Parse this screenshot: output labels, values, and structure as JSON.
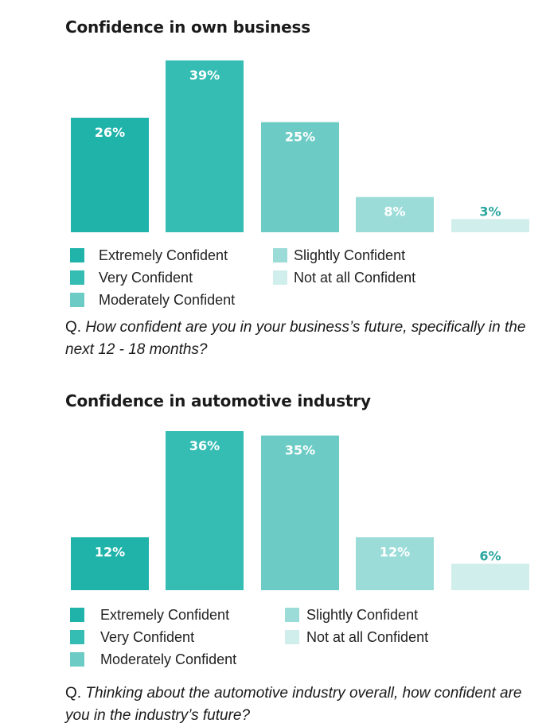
{
  "colors": {
    "extremely": "#1fb3aa",
    "very": "#35bdb4",
    "moderately": "#6ccbc5",
    "slightly": "#9cdcd8",
    "not_at_all": "#d0eeec",
    "label_dark": "#ffffff",
    "label_light": "#2aa79f"
  },
  "panels": [
    {
      "title": "Confidence in own business",
      "legend": [
        {
          "label": "Extremely Confident",
          "color": "#1fb3aa"
        },
        {
          "label": "Very Confident",
          "color": "#35bdb4"
        },
        {
          "label": "Moderately Confident",
          "color": "#6ccbc5"
        },
        {
          "label": "Slightly Confident",
          "color": "#9cdcd8"
        },
        {
          "label": "Not at all Confident",
          "color": "#d0eeec"
        }
      ],
      "question_prefix": "Q.",
      "question_text": "How confident are you in your business’s future, specifically in the next 12 - 18 months?"
    },
    {
      "title": "Confidence in automotive industry",
      "legend": [
        {
          "label": "Extremely Confident",
          "color": "#1fb3aa"
        },
        {
          "label": "Very Confident",
          "color": "#35bdb4"
        },
        {
          "label": "Moderately Confident",
          "color": "#6ccbc5"
        },
        {
          "label": "Slightly Confident",
          "color": "#9cdcd8"
        },
        {
          "label": "Not at all Confident",
          "color": "#d0eeec"
        }
      ],
      "question_prefix": "Q.",
      "question_text": "Thinking about the automotive industry overall, how confident are you in the industry’s future?"
    }
  ],
  "chart_data": [
    {
      "type": "bar",
      "title": "Confidence in own business",
      "categories": [
        "Extremely Confident",
        "Very Confident",
        "Moderately Confident",
        "Slightly Confident",
        "Not at all Confident"
      ],
      "values": [
        26,
        39,
        25,
        8,
        3
      ],
      "data_labels": [
        "26%",
        "39%",
        "25%",
        "8%",
        "3%"
      ],
      "colors": [
        "#1fb3aa",
        "#35bdb4",
        "#6ccbc5",
        "#9cdcd8",
        "#d0eeec"
      ],
      "ylim": [
        0,
        39
      ],
      "grid": false,
      "legend": "bottom"
    },
    {
      "type": "bar",
      "title": "Confidence in automotive industry",
      "categories": [
        "Extremely Confident",
        "Very Confident",
        "Moderately Confident",
        "Slightly Confident",
        "Not at all Confident"
      ],
      "values": [
        12,
        36,
        35,
        12,
        6
      ],
      "data_labels": [
        "12%",
        "36%",
        "35%",
        "12%",
        "6%"
      ],
      "colors": [
        "#1fb3aa",
        "#35bdb4",
        "#6ccbc5",
        "#9cdcd8",
        "#d0eeec"
      ],
      "ylim": [
        0,
        36
      ],
      "grid": false,
      "legend": "bottom"
    }
  ]
}
